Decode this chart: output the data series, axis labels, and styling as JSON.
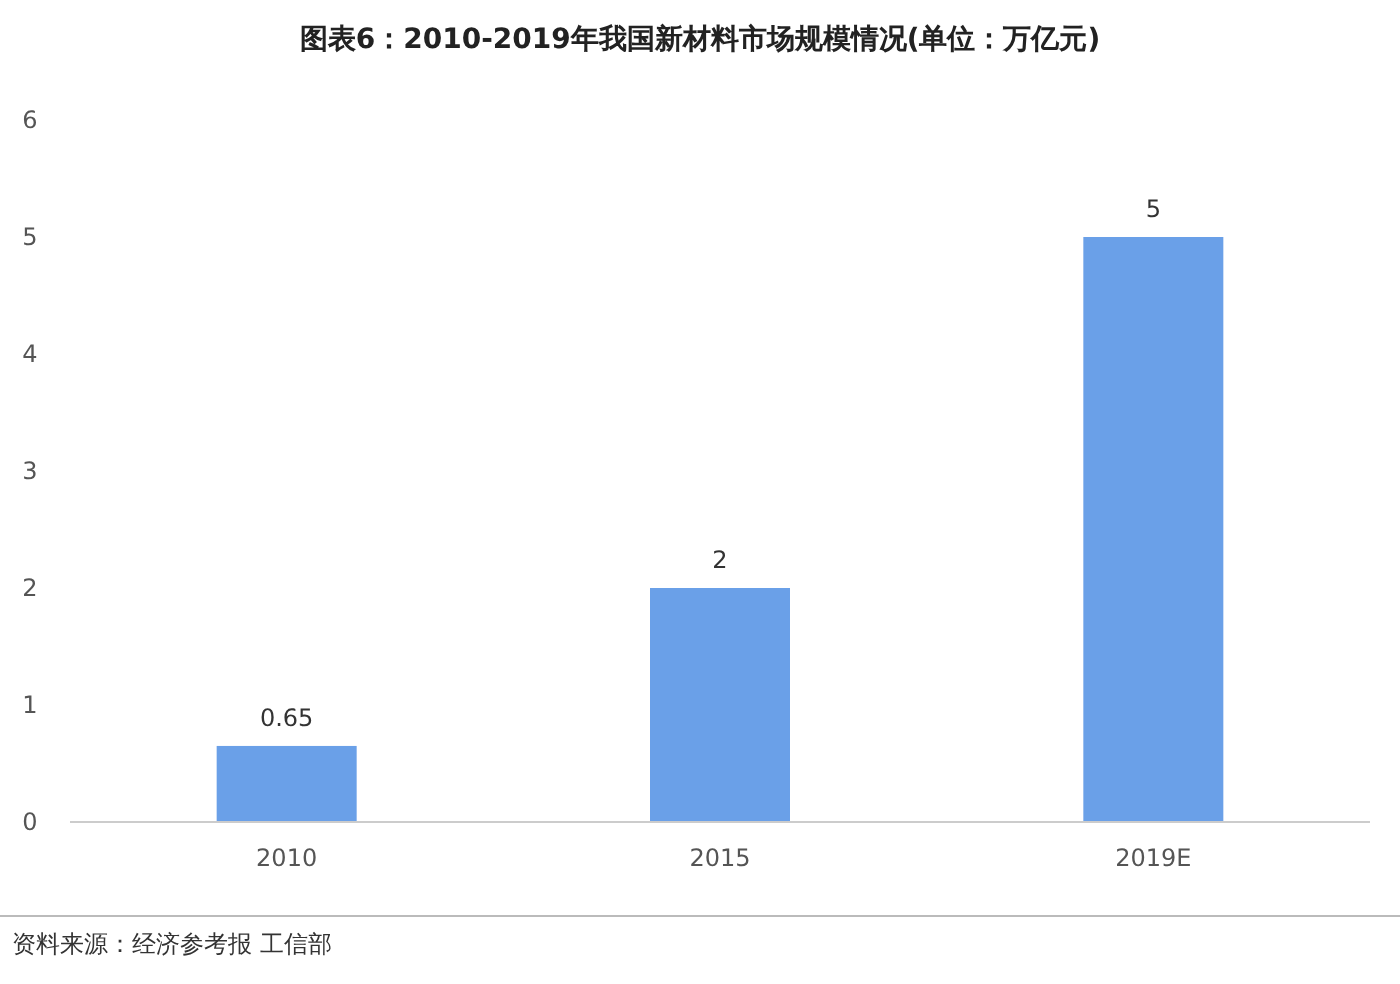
{
  "chart_data": {
    "type": "bar",
    "title": "图表6：2010-2019年我国新材料市场规模情况(单位：万亿元)",
    "categories": [
      "2010",
      "2015",
      "2019E"
    ],
    "values": [
      0.65,
      2,
      5
    ],
    "color": "#6aa0e8",
    "ylim": [
      0,
      6
    ],
    "yticks": [
      0,
      1,
      2,
      3,
      4,
      5,
      6
    ],
    "data_labels": true,
    "annotations": [
      "资料来源：经济参考报 工信部"
    ]
  }
}
